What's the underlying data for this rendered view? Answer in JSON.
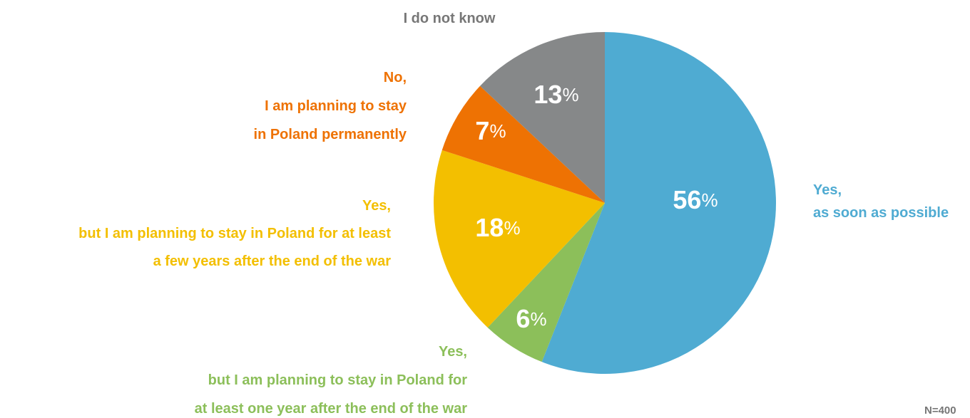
{
  "chart_data": {
    "type": "pie",
    "categories": [
      "Yes,\nas soon as possible",
      "Yes,\nbut I am planning to stay in Poland for\nat least one year after the end of the war",
      "Yes,\nbut I am planning to stay in Poland for at least\na few years after the end of the war",
      "No,\nI am planning to stay\nin Poland permanently",
      "I do not know"
    ],
    "values": [
      56,
      6,
      18,
      7,
      13
    ],
    "value_labels": [
      "56%",
      "6%",
      "18%",
      "7%",
      "13%"
    ],
    "colors": [
      "#4fabd2",
      "#8cbf5a",
      "#f3bf00",
      "#ee7203",
      "#868889"
    ],
    "label_colors": [
      "#4fabd2",
      "#8cbf5a",
      "#f3bf00",
      "#ee7203",
      "#777777"
    ],
    "note": "N=400"
  }
}
